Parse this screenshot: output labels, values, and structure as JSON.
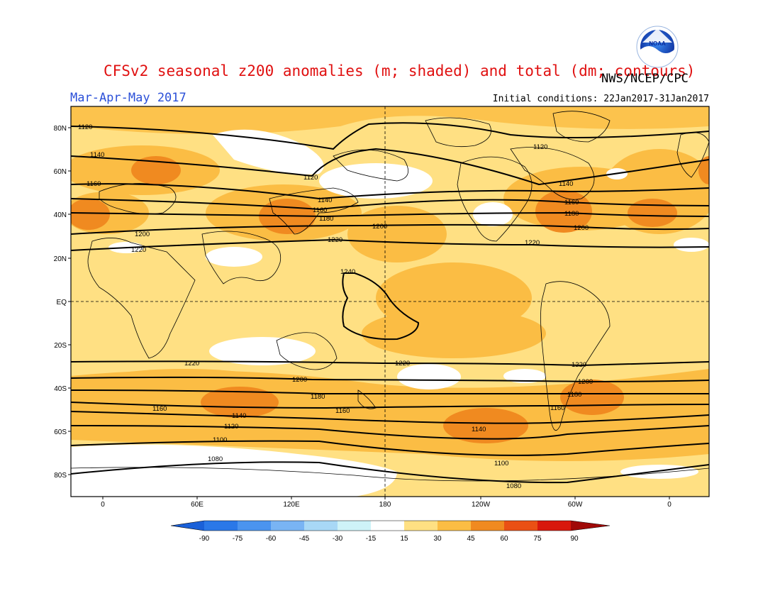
{
  "header": {
    "title": "CFSv2 seasonal z200 anomalies (m; shaded) and total (dm; contours)",
    "organization": "NWS/NCEP/CPC",
    "season": "Mar-Apr-May 2017",
    "initial_conditions": "Initial conditions: 22Jan2017-31Jan2017",
    "logo_text": "NOAA"
  },
  "map": {
    "lat_labels": [
      "80N",
      "60N",
      "40N",
      "20N",
      "EQ",
      "20S",
      "40S",
      "60S",
      "80S"
    ],
    "lon_labels": [
      "0",
      "60E",
      "120E",
      "180",
      "120W",
      "60W",
      "0"
    ],
    "contour_labels": [
      "1120",
      "1140",
      "1160",
      "1200",
      "1220",
      "1120",
      "1140",
      "1160",
      "1180",
      "1200",
      "1220",
      "1120",
      "1140",
      "1160",
      "1180",
      "1200",
      "1220",
      "1240",
      "1220",
      "1200",
      "1180",
      "1160",
      "1140",
      "1120",
      "1100",
      "1080",
      "1220",
      "1160",
      "1140",
      "1100",
      "1080",
      "1220",
      "1200",
      "1180",
      "1160"
    ]
  },
  "colorbar": {
    "labels": [
      "-90",
      "-75",
      "-60",
      "-45",
      "-30",
      "-15",
      "15",
      "30",
      "45",
      "60",
      "75",
      "90"
    ],
    "colors": [
      "#1a60d8",
      "#2a78e8",
      "#4b94ef",
      "#79b4f4",
      "#a8d8f6",
      "#cef3f8",
      "#ffffff",
      "#ffe083",
      "#fbbd44",
      "#f08a20",
      "#ea5014",
      "#d8180c",
      "#a00a08"
    ]
  }
}
